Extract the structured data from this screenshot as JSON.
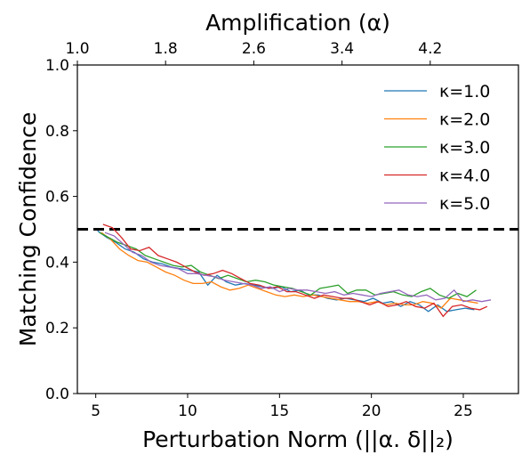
{
  "chart_data": {
    "type": "line",
    "xlabel": "Perturbation Norm (||α. δ||₂)",
    "ylabel": "Matching Confidence",
    "top_xlabel": "Amplification (α)",
    "xlim": [
      4,
      28
    ],
    "ylim": [
      0,
      1
    ],
    "xticks": [
      5,
      10,
      15,
      20,
      25
    ],
    "xtick_labels": [
      "5",
      "10",
      "15",
      "20",
      "25"
    ],
    "yticks": [
      0,
      0.2,
      0.4,
      0.6,
      0.8,
      1.0
    ],
    "ytick_labels": [
      "0.0",
      "0.2",
      "0.4",
      "0.6",
      "0.8",
      "1.0"
    ],
    "top_ticks": [
      1.0,
      1.8,
      2.6,
      3.4,
      4.2
    ],
    "top_tick_labels": [
      "1.0",
      "1.8",
      "2.6",
      "3.4",
      "4.2"
    ],
    "top_alpha_range": [
      1.0,
      5.0
    ],
    "threshold": {
      "y": 0.5,
      "color": "#000000",
      "style": "dashed"
    },
    "grid": false,
    "legend_position": "upper right",
    "series": [
      {
        "name": "κ=1.0",
        "color": "#1f77b4",
        "x": [
          5.1,
          5.6,
          6.1,
          6.6,
          7.1,
          7.6,
          8.1,
          8.6,
          9.1,
          9.6,
          10.1,
          10.6,
          11.1,
          11.6,
          12.1,
          12.6,
          13.1,
          13.6,
          14.1,
          14.6,
          15.1,
          15.6,
          16.1,
          16.6,
          17.1,
          17.6,
          18.1,
          18.6,
          19.1,
          19.6,
          20.1,
          20.6,
          21.1,
          21.6,
          22.1,
          22.6,
          23.1,
          23.6,
          24.1,
          24.6,
          25.1,
          25.6
        ],
        "y": [
          0.495,
          0.475,
          0.46,
          0.44,
          0.43,
          0.41,
          0.4,
          0.395,
          0.385,
          0.38,
          0.375,
          0.37,
          0.33,
          0.36,
          0.34,
          0.33,
          0.335,
          0.33,
          0.325,
          0.32,
          0.325,
          0.31,
          0.315,
          0.3,
          0.3,
          0.29,
          0.285,
          0.29,
          0.285,
          0.28,
          0.29,
          0.275,
          0.28,
          0.265,
          0.28,
          0.27,
          0.25,
          0.27,
          0.25,
          0.255,
          0.26,
          0.255
        ]
      },
      {
        "name": "κ=2.0",
        "color": "#ff7f0e",
        "x": [
          5.3,
          5.8,
          6.3,
          6.8,
          7.3,
          7.8,
          8.3,
          8.8,
          9.3,
          9.8,
          10.3,
          10.8,
          11.3,
          11.8,
          12.3,
          12.8,
          13.3,
          13.8,
          14.3,
          14.8,
          15.3,
          15.8,
          16.3,
          16.8,
          17.3,
          17.8,
          18.3,
          18.8,
          19.3,
          19.8,
          20.3,
          20.8,
          21.3,
          21.8,
          22.3,
          22.8,
          23.3,
          23.8,
          24.3,
          24.8,
          25.3,
          25.8
        ],
        "y": [
          0.49,
          0.47,
          0.44,
          0.42,
          0.405,
          0.4,
          0.385,
          0.37,
          0.36,
          0.345,
          0.335,
          0.335,
          0.34,
          0.325,
          0.315,
          0.32,
          0.33,
          0.32,
          0.31,
          0.3,
          0.295,
          0.3,
          0.295,
          0.3,
          0.295,
          0.29,
          0.285,
          0.28,
          0.28,
          0.275,
          0.28,
          0.27,
          0.275,
          0.27,
          0.27,
          0.28,
          0.275,
          0.26,
          0.29,
          0.285,
          0.28,
          0.275
        ]
      },
      {
        "name": "κ=3.0",
        "color": "#2ca02c",
        "x": [
          5.2,
          5.7,
          6.2,
          6.7,
          7.2,
          7.7,
          8.2,
          8.7,
          9.2,
          9.7,
          10.2,
          10.7,
          11.2,
          11.7,
          12.2,
          12.7,
          13.2,
          13.7,
          14.2,
          14.7,
          15.2,
          15.7,
          16.2,
          16.7,
          17.2,
          17.7,
          18.2,
          18.7,
          19.2,
          19.7,
          20.2,
          20.7,
          21.2,
          21.7,
          22.2,
          22.7,
          23.2,
          23.7,
          24.2,
          24.7,
          25.2,
          25.7
        ],
        "y": [
          0.49,
          0.475,
          0.46,
          0.45,
          0.44,
          0.42,
          0.41,
          0.4,
          0.39,
          0.385,
          0.39,
          0.37,
          0.36,
          0.35,
          0.36,
          0.35,
          0.34,
          0.345,
          0.34,
          0.33,
          0.325,
          0.32,
          0.31,
          0.3,
          0.32,
          0.325,
          0.33,
          0.305,
          0.315,
          0.315,
          0.3,
          0.305,
          0.31,
          0.3,
          0.295,
          0.31,
          0.32,
          0.3,
          0.29,
          0.305,
          0.295,
          0.315
        ]
      },
      {
        "name": "κ=4.0",
        "color": "#d62728",
        "x": [
          5.4,
          5.9,
          6.4,
          6.9,
          7.4,
          7.9,
          8.4,
          8.9,
          9.4,
          9.9,
          10.4,
          10.9,
          11.4,
          11.9,
          12.4,
          12.9,
          13.4,
          13.9,
          14.4,
          14.9,
          15.4,
          15.9,
          16.4,
          16.9,
          17.4,
          17.9,
          18.4,
          18.9,
          19.4,
          19.9,
          20.4,
          20.9,
          21.4,
          21.9,
          22.4,
          22.9,
          23.4,
          23.9,
          24.4,
          24.9,
          25.4,
          25.9,
          26.3
        ],
        "y": [
          0.515,
          0.505,
          0.475,
          0.44,
          0.435,
          0.445,
          0.42,
          0.41,
          0.4,
          0.385,
          0.37,
          0.36,
          0.365,
          0.375,
          0.365,
          0.35,
          0.335,
          0.33,
          0.32,
          0.325,
          0.31,
          0.31,
          0.3,
          0.29,
          0.3,
          0.295,
          0.29,
          0.29,
          0.28,
          0.27,
          0.28,
          0.265,
          0.27,
          0.28,
          0.265,
          0.26,
          0.275,
          0.235,
          0.265,
          0.27,
          0.26,
          0.255,
          0.265
        ]
      },
      {
        "name": "κ=5.0",
        "color": "#9467bd",
        "x": [
          5.5,
          6.0,
          6.5,
          7.0,
          7.5,
          8.0,
          8.5,
          9.0,
          9.5,
          10.0,
          10.5,
          11.0,
          11.5,
          12.0,
          12.5,
          13.0,
          13.5,
          14.0,
          14.5,
          15.0,
          15.5,
          16.0,
          16.5,
          17.0,
          17.5,
          18.0,
          18.5,
          19.0,
          19.5,
          20.0,
          20.5,
          21.0,
          21.5,
          22.0,
          22.5,
          23.0,
          23.5,
          24.0,
          24.5,
          25.0,
          25.5,
          26.0,
          26.5
        ],
        "y": [
          0.49,
          0.48,
          0.455,
          0.43,
          0.42,
          0.4,
          0.39,
          0.385,
          0.38,
          0.365,
          0.365,
          0.36,
          0.355,
          0.345,
          0.34,
          0.335,
          0.33,
          0.32,
          0.325,
          0.31,
          0.32,
          0.315,
          0.315,
          0.31,
          0.305,
          0.31,
          0.3,
          0.305,
          0.3,
          0.295,
          0.305,
          0.31,
          0.315,
          0.3,
          0.295,
          0.3,
          0.285,
          0.29,
          0.315,
          0.28,
          0.285,
          0.28,
          0.285
        ]
      }
    ]
  }
}
